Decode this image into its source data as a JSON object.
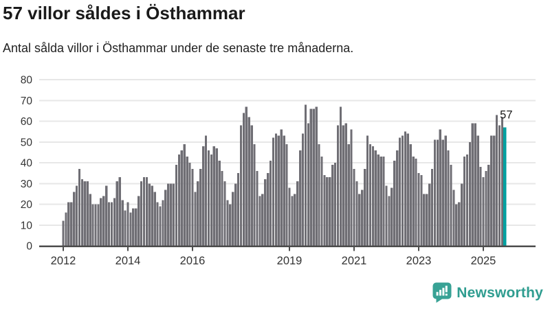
{
  "header": {
    "title": "57 villor såldes i Östhammar",
    "subtitle": "Antal sålda villor i Östhammar under de senaste tre månaderna."
  },
  "chart_data": {
    "type": "bar",
    "title": "57 villor såldes i Östhammar",
    "subtitle": "Antal sålda villor i Östhammar under de senaste tre månaderna.",
    "xlabel": "",
    "ylabel": "",
    "ylim": [
      0,
      80
    ],
    "grid": true,
    "y_ticks": [
      0,
      10,
      20,
      30,
      40,
      50,
      60,
      70,
      80
    ],
    "x_tick_years": [
      2012,
      2014,
      2016,
      2019,
      2021,
      2023,
      2025
    ],
    "x_start": "2012-01",
    "frequency": "monthly",
    "bar_color": "#6f6e74",
    "highlight_color": "#00a0a0",
    "highlight_label": "57",
    "axis_color": "#4d4d4d",
    "gridline_color": "#e7e7e7",
    "tick_label_color": "#333333",
    "values": [
      12,
      16,
      21,
      21,
      26,
      29,
      37,
      32,
      31,
      31,
      25,
      20,
      20,
      20,
      23,
      24,
      29,
      21,
      21,
      23,
      31,
      33,
      22,
      17,
      21,
      16,
      18,
      18,
      24,
      31,
      33,
      33,
      30,
      29,
      26,
      21,
      19,
      22,
      27,
      30,
      30,
      30,
      39,
      44,
      46,
      49,
      43,
      40,
      37,
      26,
      31,
      37,
      48,
      53,
      46,
      44,
      48,
      47,
      41,
      36,
      31,
      22,
      20,
      26,
      30,
      35,
      58,
      64,
      67,
      62,
      58,
      49,
      36,
      24,
      25,
      32,
      35,
      41,
      52,
      54,
      53,
      56,
      53,
      49,
      28,
      24,
      25,
      31,
      46,
      54,
      68,
      59,
      66,
      66,
      67,
      49,
      43,
      34,
      33,
      33,
      39,
      40,
      58,
      67,
      58,
      59,
      49,
      56,
      37,
      31,
      25,
      27,
      37,
      53,
      49,
      48,
      46,
      44,
      43,
      43,
      29,
      24,
      28,
      41,
      46,
      52,
      53,
      55,
      54,
      49,
      43,
      42,
      35,
      34,
      25,
      25,
      30,
      37,
      51,
      51,
      56,
      51,
      53,
      46,
      39,
      27,
      20,
      21,
      30,
      43,
      44,
      50,
      59,
      59,
      53,
      38,
      33,
      36,
      39,
      53,
      53,
      63,
      58,
      62,
      57
    ]
  },
  "logo": {
    "text": "Newsworthy",
    "icon": "newsworthy-bar-chart-bubble-icon",
    "icon_color": "#38a295",
    "text_color": "#2f9d90"
  }
}
